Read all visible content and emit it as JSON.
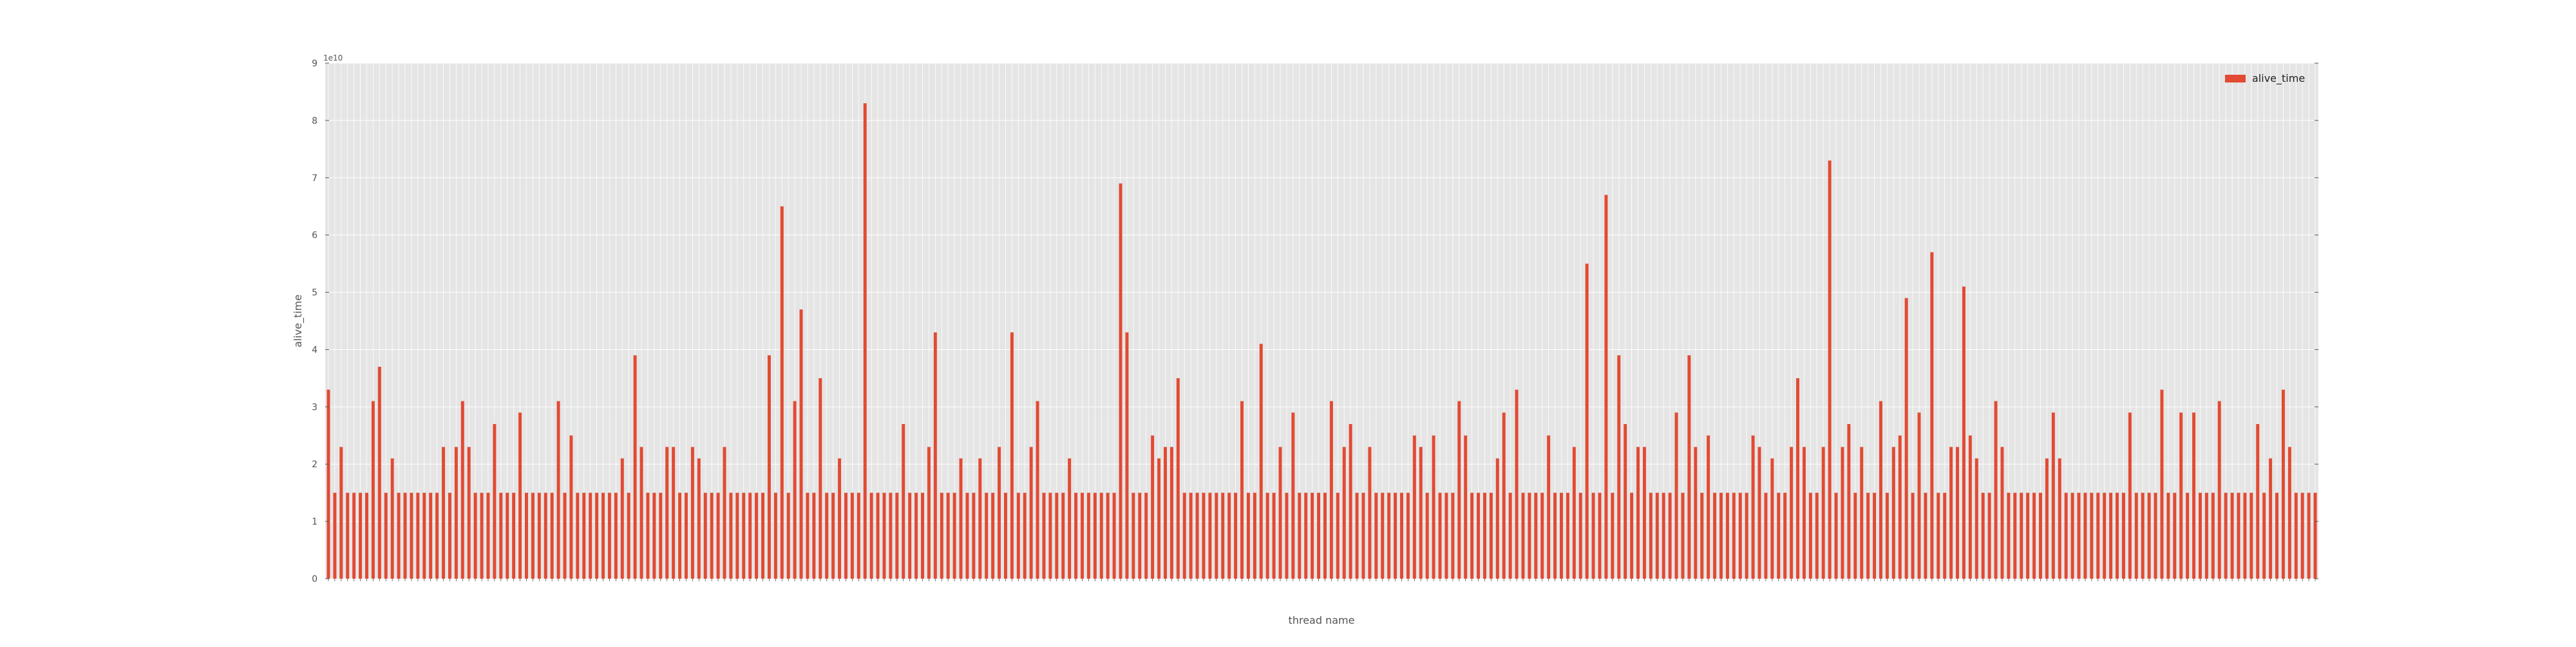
{
  "chart_data": {
    "type": "bar",
    "title": "",
    "xlabel": "thread name",
    "ylabel": "alive_time",
    "y_scale_label": "1e10",
    "y_unit": 10000000000,
    "ylim": [
      0,
      9
    ],
    "yticks": [
      "0",
      "1",
      "2",
      "3",
      "4",
      "5",
      "6",
      "7",
      "8",
      "9"
    ],
    "grid": true,
    "legend_position": "top-right",
    "colors": {
      "bar": "#e24a33",
      "plot_bg": "#e5e5e5",
      "grid": "#ffffff",
      "text": "#555555"
    },
    "series": [
      {
        "name": "alive_time",
        "values": [
          3.3,
          1.5,
          2.3,
          1.5,
          1.5,
          1.5,
          1.5,
          3.1,
          3.7,
          1.5,
          2.1,
          1.5,
          1.5,
          1.5,
          1.5,
          1.5,
          1.5,
          1.5,
          2.3,
          1.5,
          2.3,
          3.1,
          2.3,
          1.5,
          1.5,
          1.5,
          2.7,
          1.5,
          1.5,
          1.5,
          2.9,
          1.5,
          1.5,
          1.5,
          1.5,
          1.5,
          3.1,
          1.5,
          2.5,
          1.5,
          1.5,
          1.5,
          1.5,
          1.5,
          1.5,
          1.5,
          2.1,
          1.5,
          3.9,
          2.3,
          1.5,
          1.5,
          1.5,
          2.3,
          2.3,
          1.5,
          1.5,
          2.3,
          2.1,
          1.5,
          1.5,
          1.5,
          2.3,
          1.5,
          1.5,
          1.5,
          1.5,
          1.5,
          1.5,
          3.9,
          1.5,
          6.5,
          1.5,
          3.1,
          4.7,
          1.5,
          1.5,
          3.5,
          1.5,
          1.5,
          2.1,
          1.5,
          1.5,
          1.5,
          8.3,
          1.5,
          1.5,
          1.5,
          1.5,
          1.5,
          2.7,
          1.5,
          1.5,
          1.5,
          2.3,
          4.3,
          1.5,
          1.5,
          1.5,
          2.1,
          1.5,
          1.5,
          2.1,
          1.5,
          1.5,
          2.3,
          1.5,
          4.3,
          1.5,
          1.5,
          2.3,
          3.1,
          1.5,
          1.5,
          1.5,
          1.5,
          2.1,
          1.5,
          1.5,
          1.5,
          1.5,
          1.5,
          1.5,
          1.5,
          6.9,
          4.3,
          1.5,
          1.5,
          1.5,
          2.5,
          2.1,
          2.3,
          2.3,
          3.5,
          1.5,
          1.5,
          1.5,
          1.5,
          1.5,
          1.5,
          1.5,
          1.5,
          1.5,
          3.1,
          1.5,
          1.5,
          4.1,
          1.5,
          1.5,
          2.3,
          1.5,
          2.9,
          1.5,
          1.5,
          1.5,
          1.5,
          1.5,
          3.1,
          1.5,
          2.3,
          2.7,
          1.5,
          1.5,
          2.3,
          1.5,
          1.5,
          1.5,
          1.5,
          1.5,
          1.5,
          2.5,
          2.3,
          1.5,
          2.5,
          1.5,
          1.5,
          1.5,
          3.1,
          2.5,
          1.5,
          1.5,
          1.5,
          1.5,
          2.1,
          2.9,
          1.5,
          3.3,
          1.5,
          1.5,
          1.5,
          1.5,
          2.5,
          1.5,
          1.5,
          1.5,
          2.3,
          1.5,
          5.5,
          1.5,
          1.5,
          6.7,
          1.5,
          3.9,
          2.7,
          1.5,
          2.3,
          2.3,
          1.5,
          1.5,
          1.5,
          1.5,
          2.9,
          1.5,
          3.9,
          2.3,
          1.5,
          2.5,
          1.5,
          1.5,
          1.5,
          1.5,
          1.5,
          1.5,
          2.5,
          2.3,
          1.5,
          2.1,
          1.5,
          1.5,
          2.3,
          3.5,
          2.3,
          1.5,
          1.5,
          2.3,
          7.3,
          1.5,
          2.3,
          2.7,
          1.5,
          2.3,
          1.5,
          1.5,
          3.1,
          1.5,
          2.3,
          2.5,
          4.9,
          1.5,
          2.9,
          1.5,
          5.7,
          1.5,
          1.5,
          2.3,
          2.3,
          5.1,
          2.5,
          2.1,
          1.5,
          1.5,
          3.1,
          2.3,
          1.5,
          1.5,
          1.5,
          1.5,
          1.5,
          1.5,
          2.1,
          2.9,
          2.1,
          1.5,
          1.5,
          1.5,
          1.5,
          1.5,
          1.5,
          1.5,
          1.5,
          1.5,
          1.5,
          2.9,
          1.5,
          1.5,
          1.5,
          1.5,
          3.3,
          1.5,
          1.5,
          2.9,
          1.5,
          2.9,
          1.5,
          1.5,
          1.5,
          3.1,
          1.5,
          1.5,
          1.5,
          1.5,
          1.5,
          2.7,
          1.5,
          2.1,
          1.5,
          3.3,
          2.3,
          1.5,
          1.5,
          1.5,
          1.5
        ]
      }
    ]
  }
}
